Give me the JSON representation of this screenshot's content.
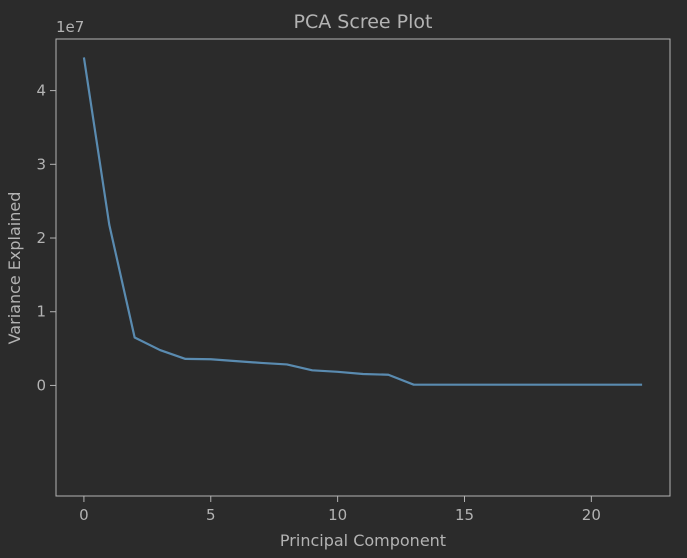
{
  "chart_data": {
    "type": "line",
    "title": "PCA Scree Plot",
    "xlabel": "Principal Component",
    "ylabel": "Variance Explained",
    "y_offset_label": "1e7",
    "xlim": [
      -1.1,
      23.1
    ],
    "ylim": [
      -1.5,
      4.7
    ],
    "x_ticks": [
      0,
      5,
      10,
      15,
      20
    ],
    "y_ticks": [
      0,
      1,
      2,
      3,
      4
    ],
    "grid": false,
    "colors": {
      "background": "#2b2b2b",
      "line": "#5a8bb0",
      "text": "#b3b3b3",
      "axes": "#b3b3b3"
    },
    "series": [
      {
        "x": [
          0,
          1,
          2,
          3,
          4,
          5,
          6,
          7,
          8,
          9,
          10,
          11,
          12,
          13,
          14,
          15,
          16,
          17,
          18,
          19,
          20,
          21,
          22
        ],
        "y": [
          4.45,
          2.18,
          0.65,
          0.48,
          0.36,
          0.355,
          0.33,
          0.305,
          0.285,
          0.205,
          0.185,
          0.155,
          0.145,
          0.01,
          0.01,
          0.01,
          0.01,
          0.01,
          0.01,
          0.01,
          0.01,
          0.01,
          0.01
        ]
      }
    ]
  }
}
